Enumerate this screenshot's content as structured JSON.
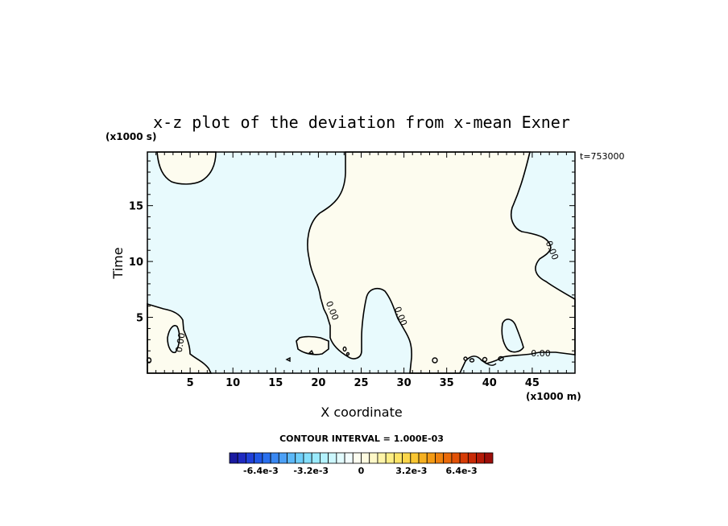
{
  "chart_data": {
    "type": "contour",
    "title": "x-z plot of the deviation from x-mean Exner",
    "xlabel": "X coordinate",
    "ylabel": "Time",
    "x_unit": "(x1000 m)",
    "y_unit": "(x1000 s)",
    "timestamp": "t=753000",
    "xlim": [
      0,
      50
    ],
    "ylim": [
      0,
      19.8
    ],
    "x_ticks": [
      5,
      10,
      15,
      20,
      25,
      30,
      35,
      40,
      45
    ],
    "x_tick_labels": [
      "5",
      "10",
      "15",
      "20",
      "25",
      "30",
      "35",
      "40",
      "45"
    ],
    "y_ticks": [
      5,
      10,
      15
    ],
    "y_tick_labels": [
      "5",
      "10",
      "15"
    ],
    "contour_interval": "CONTOUR INTERVAL = 1.000E-03",
    "contour_labels": [
      {
        "text": "0.00",
        "x": 4.2,
        "y": 2.7,
        "rotate": -80
      },
      {
        "text": "0.00",
        "x": 21.3,
        "y": 5.5,
        "rotate": 68
      },
      {
        "text": "0.00",
        "x": 29.3,
        "y": 5.0,
        "rotate": 68
      },
      {
        "text": "0.00",
        "x": 47.0,
        "y": 10.9,
        "rotate": 68
      },
      {
        "text": "0.00",
        "x": 46.0,
        "y": 1.5,
        "rotate": 0
      }
    ],
    "colorbar": {
      "range": [
        -0.0084,
        0.0084
      ],
      "labels": [
        "-6.4e-3",
        "-3.2e-3",
        "0",
        "3.2e-3",
        "6.4e-3"
      ],
      "label_values": [
        -0.0064,
        -0.0032,
        0,
        0.0032,
        0.0064
      ],
      "colors": [
        "#1a1aa0",
        "#1f2ac0",
        "#2040d8",
        "#2158e6",
        "#2a70ee",
        "#3a88f2",
        "#4ca0f6",
        "#5cb8f8",
        "#6ecefa",
        "#84dffc",
        "#9aeafd",
        "#b4f2fe",
        "#ccf7fe",
        "#e2fbfe",
        "#f2fdfe",
        "#fdfdf0",
        "#fefbe0",
        "#fef8c8",
        "#fef4a8",
        "#fdee86",
        "#fde466",
        "#fbd64a",
        "#f9c632",
        "#f6b020",
        "#f39a14",
        "#ef820e",
        "#ea6a0a",
        "#e25208",
        "#d63c06",
        "#c82a06",
        "#b41a08",
        "#9c0e0a"
      ]
    },
    "fill_colors": {
      "negative": "#e8fafd",
      "positive": "#fdfcef"
    }
  }
}
